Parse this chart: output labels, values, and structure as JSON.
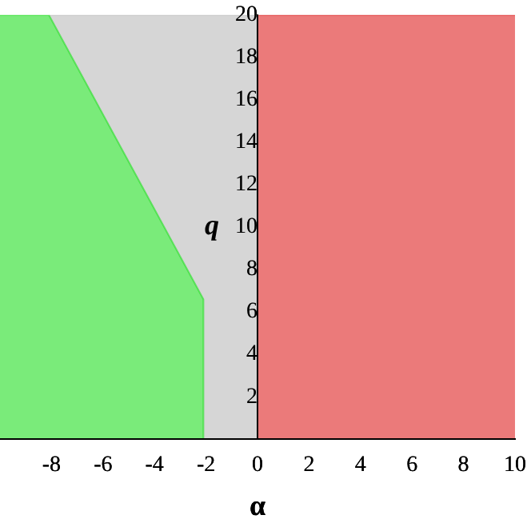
{
  "chart_data": {
    "type": "area",
    "xlabel": "α",
    "ylabel": "q",
    "stacked": true,
    "xlim": [
      -10,
      10
    ],
    "ylim": [
      0,
      20
    ],
    "xticks": [
      -8,
      -6,
      -4,
      -2,
      0,
      2,
      4,
      6,
      8,
      10
    ],
    "yticks": [
      2,
      4,
      6,
      8,
      10,
      12,
      14,
      16,
      18,
      20
    ],
    "grid": false,
    "legend": false,
    "x": [
      -10,
      -8.1,
      -2.1,
      -2.1,
      0,
      0,
      10
    ],
    "series": [
      {
        "color": "#22dd22",
        "values": [
          20,
          20,
          6.6,
          0,
          null,
          null,
          null
        ]
      },
      {
        "color": "#bbbbbb",
        "values": [
          null,
          0,
          13.4,
          20,
          20,
          null,
          null
        ]
      },
      {
        "color": "#dd2222",
        "values": [
          null,
          null,
          null,
          null,
          null,
          20,
          20
        ]
      }
    ]
  }
}
